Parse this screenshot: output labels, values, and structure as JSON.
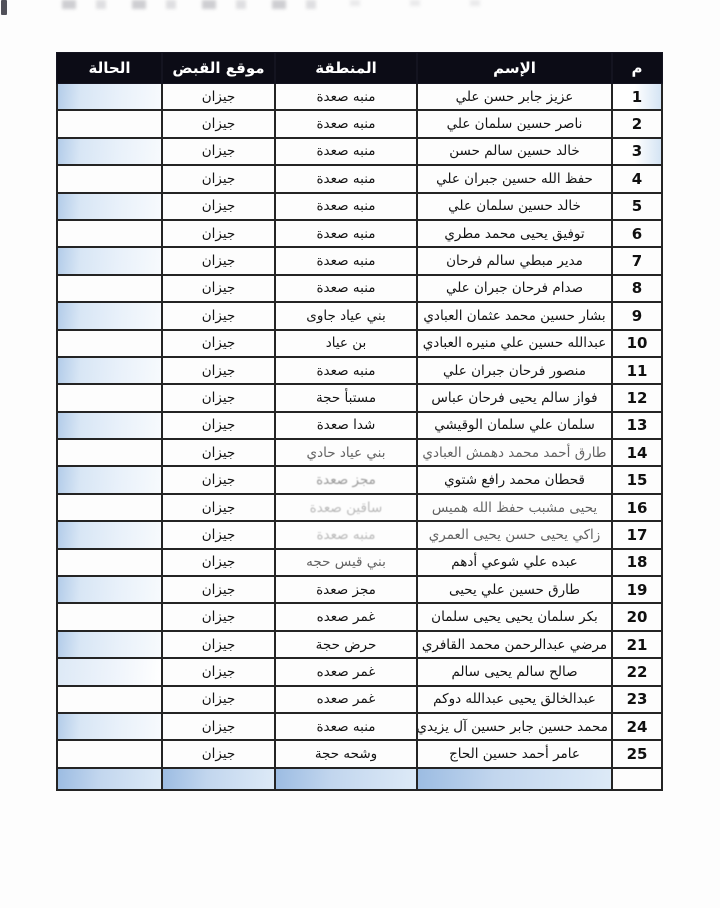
{
  "table": {
    "columns": [
      {
        "key": "num",
        "label": "م"
      },
      {
        "key": "name",
        "label": "الإسم"
      },
      {
        "key": "region",
        "label": "المنطقة"
      },
      {
        "key": "location",
        "label": "موقع القبض"
      },
      {
        "key": "status",
        "label": "الحالة"
      }
    ],
    "rows": [
      {
        "num": "1",
        "name": "عزيز جابر حسن علي",
        "region": "منبه صعدة",
        "location": "جيزان",
        "status": "",
        "status_hl": "normal",
        "name_fade": 0,
        "region_fade": 0,
        "num_tint": true
      },
      {
        "num": "2",
        "name": "ناصر حسين سلمان علي",
        "region": "منبه صعدة",
        "location": "جيزان",
        "status": "",
        "status_hl": "none",
        "name_fade": 0,
        "region_fade": 0,
        "num_tint": false
      },
      {
        "num": "3",
        "name": "خالد حسين سالم حسن",
        "region": "منبه صعدة",
        "location": "جيزان",
        "status": "",
        "status_hl": "normal",
        "name_fade": 0,
        "region_fade": 0,
        "num_tint": true
      },
      {
        "num": "4",
        "name": "حفظ الله حسين جبران علي",
        "region": "منبه صعدة",
        "location": "جيزان",
        "status": "",
        "status_hl": "none",
        "name_fade": 0,
        "region_fade": 0,
        "num_tint": false
      },
      {
        "num": "5",
        "name": "خالد حسين سلمان علي",
        "region": "منبه صعدة",
        "location": "جيزان",
        "status": "",
        "status_hl": "normal",
        "name_fade": 0,
        "region_fade": 0,
        "num_tint": false
      },
      {
        "num": "6",
        "name": "توفيق يحيى محمد مطري",
        "region": "منبه صعدة",
        "location": "جيزان",
        "status": "",
        "status_hl": "none",
        "name_fade": 0,
        "region_fade": 0,
        "num_tint": false
      },
      {
        "num": "7",
        "name": "مدير مبطي سالم فرحان",
        "region": "منبه صعدة",
        "location": "جيزان",
        "status": "",
        "status_hl": "normal",
        "name_fade": 0,
        "region_fade": 0,
        "num_tint": false
      },
      {
        "num": "8",
        "name": "صدام فرحان جبران علي",
        "region": "منبه صعدة",
        "location": "جيزان",
        "status": "",
        "status_hl": "none",
        "name_fade": 0,
        "region_fade": 0,
        "num_tint": false
      },
      {
        "num": "9",
        "name": "بشار حسين محمد عثمان العبادي",
        "region": "بني عياد جاوى",
        "location": "جيزان",
        "status": "",
        "status_hl": "normal",
        "name_fade": 0,
        "region_fade": 0,
        "num_tint": false
      },
      {
        "num": "10",
        "name": "عبدالله حسين علي منيره العبادي",
        "region": "بن عياد",
        "location": "جيزان",
        "status": "",
        "status_hl": "none",
        "name_fade": 0,
        "region_fade": 0,
        "num_tint": false
      },
      {
        "num": "11",
        "name": "منصور فرحان جبران علي",
        "region": "منبه صعدة",
        "location": "جيزان",
        "status": "",
        "status_hl": "normal",
        "name_fade": 0,
        "region_fade": 0,
        "num_tint": false
      },
      {
        "num": "12",
        "name": "فواز سالم يحيى فرحان عباس",
        "region": "مستبأ حجة",
        "location": "جيزان",
        "status": "",
        "status_hl": "none",
        "name_fade": 0,
        "region_fade": 0,
        "num_tint": false
      },
      {
        "num": "13",
        "name": "سلمان علي سلمان الوقيشي",
        "region": "شدا صعدة",
        "location": "جيزان",
        "status": "",
        "status_hl": "normal",
        "name_fade": 0,
        "region_fade": 0,
        "num_tint": false
      },
      {
        "num": "14",
        "name": "طارق أحمد محمد دهمش العبادي",
        "region": "بني عياد حادي",
        "location": "جيزان",
        "status": "",
        "status_hl": "none",
        "name_fade": 1,
        "region_fade": 1,
        "num_tint": false
      },
      {
        "num": "15",
        "name": "قحطان محمد رافع شتوي",
        "region": "مجز صعدة",
        "location": "جيزان",
        "status": "",
        "status_hl": "normal",
        "name_fade": 0,
        "region_fade": 2,
        "num_tint": false
      },
      {
        "num": "16",
        "name": "يحيى مشبب حفظ الله هميس",
        "region": "ساقين صعدة",
        "location": "جيزان",
        "status": "",
        "status_hl": "none",
        "name_fade": 1,
        "region_fade": 3,
        "num_tint": false
      },
      {
        "num": "17",
        "name": "زاكي يحيى حسن يحيى العمري",
        "region": "منبه صعدة",
        "location": "جيزان",
        "status": "",
        "status_hl": "normal",
        "name_fade": 1,
        "region_fade": 3,
        "num_tint": false
      },
      {
        "num": "18",
        "name": "عبده علي شوعي أدهم",
        "region": "بني قيس حجه",
        "location": "جيزان",
        "status": "",
        "status_hl": "none",
        "name_fade": 0,
        "region_fade": 1,
        "num_tint": false
      },
      {
        "num": "19",
        "name": "طارق حسين علي يحيى",
        "region": "مجز صعدة",
        "location": "جيزان",
        "status": "",
        "status_hl": "normal",
        "name_fade": 0,
        "region_fade": 0,
        "num_tint": false
      },
      {
        "num": "20",
        "name": "بكر سلمان يحيى يحيى سلمان",
        "region": "غمر صعده",
        "location": "جيزان",
        "status": "",
        "status_hl": "none",
        "name_fade": 0,
        "region_fade": 0,
        "num_tint": false
      },
      {
        "num": "21",
        "name": "مرضي عبدالرحمن محمد القافري",
        "region": "حرض حجة",
        "location": "جيزان",
        "status": "",
        "status_hl": "normal",
        "name_fade": 0,
        "region_fade": 0,
        "num_tint": false
      },
      {
        "num": "22",
        "name": "صالح سالم يحيى سالم",
        "region": "غمر صعده",
        "location": "جيزان",
        "status": "",
        "status_hl": "faint",
        "name_fade": 0,
        "region_fade": 0,
        "num_tint": false
      },
      {
        "num": "23",
        "name": "عبدالخالق يحيى عبدالله دوكم",
        "region": "غمر صعده",
        "location": "جيزان",
        "status": "",
        "status_hl": "none",
        "name_fade": 0,
        "region_fade": 0,
        "num_tint": false
      },
      {
        "num": "24",
        "name": "محمد حسين جابر حسين آل يزيدي",
        "region": "منبه صعدة",
        "location": "جيزان",
        "status": "",
        "status_hl": "normal",
        "name_fade": 0,
        "region_fade": 0,
        "num_tint": false
      },
      {
        "num": "25",
        "name": "عامر أحمد حسين الحاج",
        "region": "وشحه حجة",
        "location": "جيزان",
        "status": "",
        "status_hl": "none",
        "name_fade": 0,
        "region_fade": 0,
        "num_tint": false
      }
    ],
    "empty_row": {
      "num": "",
      "name": "",
      "region": "",
      "location": "",
      "status": "",
      "highlighted": true
    }
  },
  "colors": {
    "header_bg": "#0c0c16",
    "header_text": "#ffffff",
    "border": "#242424",
    "highlight_blue": "#b3cce9",
    "page_bg": "#fdfdfd"
  }
}
